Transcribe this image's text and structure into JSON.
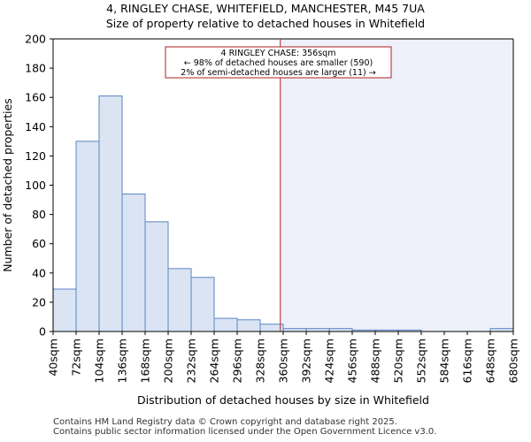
{
  "title_line1": "4, RINGLEY CHASE, WHITEFIELD, MANCHESTER, M45 7UA",
  "title_line2": "Size of property relative to detached houses in Whitefield",
  "footer_line1": "Contains HM Land Registry data © Crown copyright and database right 2025.",
  "footer_line2": "Contains public sector information licensed under the Open Government Licence v3.0.",
  "chart_data": {
    "type": "bar",
    "xlabel": "Distribution of detached houses by size in Whitefield",
    "ylabel": "Number of detached properties",
    "ylim": [
      0,
      200
    ],
    "yticks": [
      0,
      20,
      40,
      60,
      80,
      100,
      120,
      140,
      160,
      180,
      200
    ],
    "bin_edges": [
      40,
      72,
      104,
      136,
      168,
      200,
      232,
      264,
      296,
      328,
      360,
      392,
      424,
      456,
      488,
      520,
      552,
      584,
      616,
      648,
      680
    ],
    "xtick_labels": [
      "40sqm",
      "72sqm",
      "104sqm",
      "136sqm",
      "168sqm",
      "200sqm",
      "232sqm",
      "264sqm",
      "296sqm",
      "328sqm",
      "360sqm",
      "392sqm",
      "424sqm",
      "456sqm",
      "488sqm",
      "520sqm",
      "552sqm",
      "584sqm",
      "616sqm",
      "648sqm",
      "680sqm"
    ],
    "values": [
      29,
      130,
      161,
      94,
      75,
      43,
      37,
      9,
      8,
      5,
      2,
      2,
      2,
      1,
      1,
      1,
      0,
      0,
      0,
      2
    ],
    "marker_value": 356,
    "annotation": {
      "line1": "4 RINGLEY CHASE: 356sqm",
      "line2": "← 98% of detached houses are smaller (590)",
      "line3": "2% of semi-detached houses are larger (11) →"
    },
    "colors": {
      "bar_fill": "#dae4f3",
      "bar_stroke": "#5a86c4",
      "marker": "#b22222",
      "shade": "#eef0fa",
      "grid": "#cccccc"
    }
  }
}
